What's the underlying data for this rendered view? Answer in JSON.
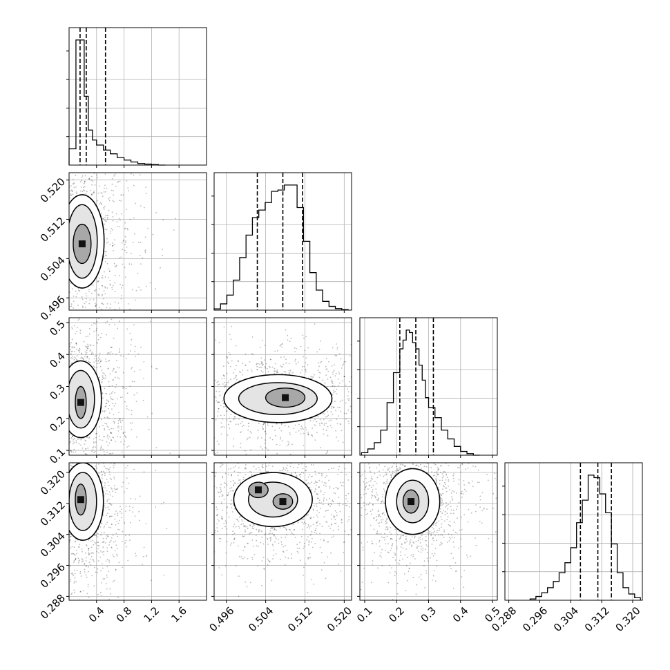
{
  "chart_data": {
    "type": "corner",
    "title": "",
    "grid": true,
    "parameters": [
      {
        "label": "",
        "range": [
          0.0,
          2.0
        ],
        "ticks": [
          0.4,
          0.8,
          1.2,
          1.6
        ],
        "tick_labels": [
          "0.4",
          "0.8",
          "1.2",
          "1.6"
        ],
        "quantiles": [
          0.16,
          0.25,
          0.53
        ],
        "hist": {
          "bin_edges": [
            0.0,
            0.1,
            0.16,
            0.22,
            0.28,
            0.34,
            0.4,
            0.5,
            0.6,
            0.7,
            0.8,
            0.9,
            1.0,
            1.1,
            1.2,
            1.3,
            1.4
          ],
          "counts": [
            0.13,
            1.0,
            1.0,
            0.55,
            0.28,
            0.2,
            0.16,
            0.12,
            0.09,
            0.06,
            0.04,
            0.025,
            0.012,
            0.008,
            0.004,
            0.0
          ]
        }
      },
      {
        "label": "",
        "range": [
          0.4935,
          0.5215
        ],
        "ticks": [
          0.496,
          0.504,
          0.512,
          0.52
        ],
        "tick_labels": [
          "0.496",
          "0.504",
          "0.512",
          "0.520"
        ],
        "quantiles": [
          0.5023,
          0.5075,
          0.5115
        ],
        "hist": {
          "bin_edges": [
            0.4935,
            0.4948,
            0.4961,
            0.4974,
            0.4987,
            0.5,
            0.5013,
            0.5026,
            0.5039,
            0.5052,
            0.5065,
            0.5078,
            0.5091,
            0.5104,
            0.5117,
            0.513,
            0.5143,
            0.5156,
            0.5169,
            0.5182,
            0.5195,
            0.5208
          ],
          "counts": [
            0.01,
            0.05,
            0.12,
            0.24,
            0.42,
            0.6,
            0.74,
            0.8,
            0.86,
            0.95,
            0.96,
            1.0,
            1.0,
            0.82,
            0.55,
            0.3,
            0.16,
            0.07,
            0.03,
            0.012,
            0.004
          ]
        }
      },
      {
        "label": "",
        "range": [
          0.085,
          0.515
        ],
        "ticks": [
          0.1,
          0.2,
          0.3,
          0.4,
          0.5
        ],
        "tick_labels": [
          "0.1",
          "0.2",
          "0.3",
          "0.4",
          "0.5"
        ],
        "quantiles": [
          0.21,
          0.26,
          0.315
        ],
        "hist": {
          "bin_edges": [
            0.09,
            0.11,
            0.13,
            0.15,
            0.17,
            0.19,
            0.21,
            0.22,
            0.23,
            0.24,
            0.25,
            0.26,
            0.27,
            0.28,
            0.29,
            0.3,
            0.32,
            0.34,
            0.36,
            0.38,
            0.4,
            0.42,
            0.44,
            0.46
          ],
          "counts": [
            0.02,
            0.05,
            0.1,
            0.2,
            0.42,
            0.66,
            0.85,
            0.92,
            1.0,
            0.98,
            0.9,
            0.85,
            0.72,
            0.6,
            0.46,
            0.38,
            0.3,
            0.2,
            0.13,
            0.07,
            0.03,
            0.012,
            0.0
          ]
        }
      },
      {
        "label": "",
        "range": [
          0.287,
          0.3225
        ],
        "ticks": [
          0.288,
          0.296,
          0.304,
          0.312,
          0.32
        ],
        "tick_labels": [
          "0.288",
          "0.296",
          "0.304",
          "0.312",
          "0.320"
        ],
        "quantiles": [
          0.3065,
          0.311,
          0.3145
        ],
        "hist": {
          "bin_edges": [
            0.2935,
            0.295,
            0.2965,
            0.298,
            0.2995,
            0.301,
            0.3025,
            0.304,
            0.3055,
            0.307,
            0.3085,
            0.31,
            0.3115,
            0.313,
            0.3145,
            0.316,
            0.3175,
            0.319,
            0.3205,
            0.322
          ],
          "counts": [
            0.01,
            0.03,
            0.06,
            0.1,
            0.15,
            0.22,
            0.3,
            0.42,
            0.62,
            0.8,
            1.0,
            0.98,
            0.85,
            0.7,
            0.45,
            0.22,
            0.1,
            0.05,
            0.02
          ]
        }
      }
    ],
    "pairs": [
      {
        "x_param": 0,
        "y_param": 1,
        "center": [
          0.19,
          0.5075
        ],
        "peaks": [
          [
            0.19,
            0.507
          ]
        ],
        "contour_spread": [
          [
            0.13,
            0.004
          ],
          [
            0.22,
            0.0075
          ],
          [
            0.32,
            0.0095
          ]
        ]
      },
      {
        "x_param": 0,
        "y_param": 2,
        "center": [
          0.17,
          0.26
        ],
        "peaks": [
          [
            0.17,
            0.25
          ]
        ],
        "contour_spread": [
          [
            0.08,
            0.05
          ],
          [
            0.2,
            0.09
          ],
          [
            0.3,
            0.12
          ]
        ]
      },
      {
        "x_param": 1,
        "y_param": 2,
        "center": [
          0.5065,
          0.262
        ],
        "peaks": [
          [
            0.508,
            0.265
          ]
        ],
        "contour_spread": [
          [
            0.004,
            0.03
          ],
          [
            0.008,
            0.05
          ],
          [
            0.011,
            0.075
          ]
        ]
      },
      {
        "x_param": 0,
        "y_param": 3,
        "center": [
          0.2,
          0.3125
        ],
        "peaks": [
          [
            0.17,
            0.313
          ]
        ],
        "contour_spread": [
          [
            0.08,
            0.004
          ],
          [
            0.2,
            0.0075
          ],
          [
            0.3,
            0.01
          ]
        ]
      },
      {
        "x_param": 1,
        "y_param": 3,
        "center": [
          0.5055,
          0.313
        ],
        "peaks": [
          [
            0.5025,
            0.3155
          ],
          [
            0.5075,
            0.3125
          ]
        ],
        "contour_spread": [
          [
            0.002,
            0.002
          ],
          [
            0.005,
            0.0045
          ],
          [
            0.008,
            0.007
          ]
        ]
      },
      {
        "x_param": 2,
        "y_param": 3,
        "center": [
          0.25,
          0.3125
        ],
        "peaks": [
          [
            0.245,
            0.3125
          ]
        ],
        "contour_spread": [
          [
            0.025,
            0.003
          ],
          [
            0.05,
            0.0055
          ],
          [
            0.085,
            0.0085
          ]
        ]
      }
    ]
  }
}
